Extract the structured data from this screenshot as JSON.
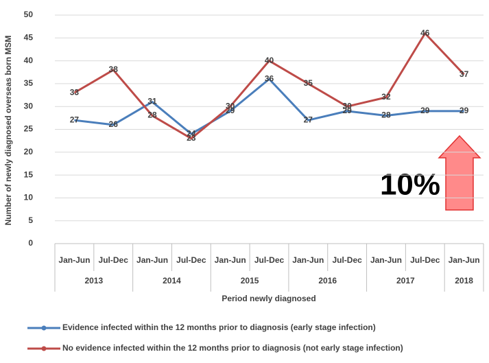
{
  "chart_data": {
    "type": "line",
    "y_label": "Number of newly diagnosed overseas born MSM",
    "x_label": "Period newly diagnosed",
    "groups": [
      {
        "label": "2013",
        "categories": [
          "Jan-Jun",
          "Jul-Dec"
        ]
      },
      {
        "label": "2014",
        "categories": [
          "Jan-Jun",
          "Jul-Dec"
        ]
      },
      {
        "label": "2015",
        "categories": [
          "Jan-Jun",
          "Jul-Dec"
        ]
      },
      {
        "label": "2016",
        "categories": [
          "Jan-Jun",
          "Jul-Dec"
        ]
      },
      {
        "label": "2017",
        "categories": [
          "Jan-Jun",
          "Jul-Dec"
        ]
      },
      {
        "label": "2018",
        "categories": [
          "Jan-Jun"
        ]
      }
    ],
    "series": [
      {
        "name": "Evidence infected within the 12 months prior to diagnosis (early stage infection)",
        "color": "#4a7ebb",
        "values": [
          27,
          26,
          31,
          24,
          29,
          36,
          27,
          29,
          28,
          29,
          29
        ]
      },
      {
        "name": "No evidence infected within the 12 months prior to diagnosis (not early stage infection)",
        "color": "#be4b48",
        "values": [
          33,
          38,
          28,
          23,
          30,
          40,
          35,
          30,
          32,
          46,
          37
        ]
      }
    ],
    "ylim": [
      0,
      50
    ],
    "yticks": [
      0,
      5,
      10,
      15,
      20,
      25,
      30,
      35,
      40,
      45,
      50
    ],
    "grid": true,
    "annotation": "10%"
  }
}
